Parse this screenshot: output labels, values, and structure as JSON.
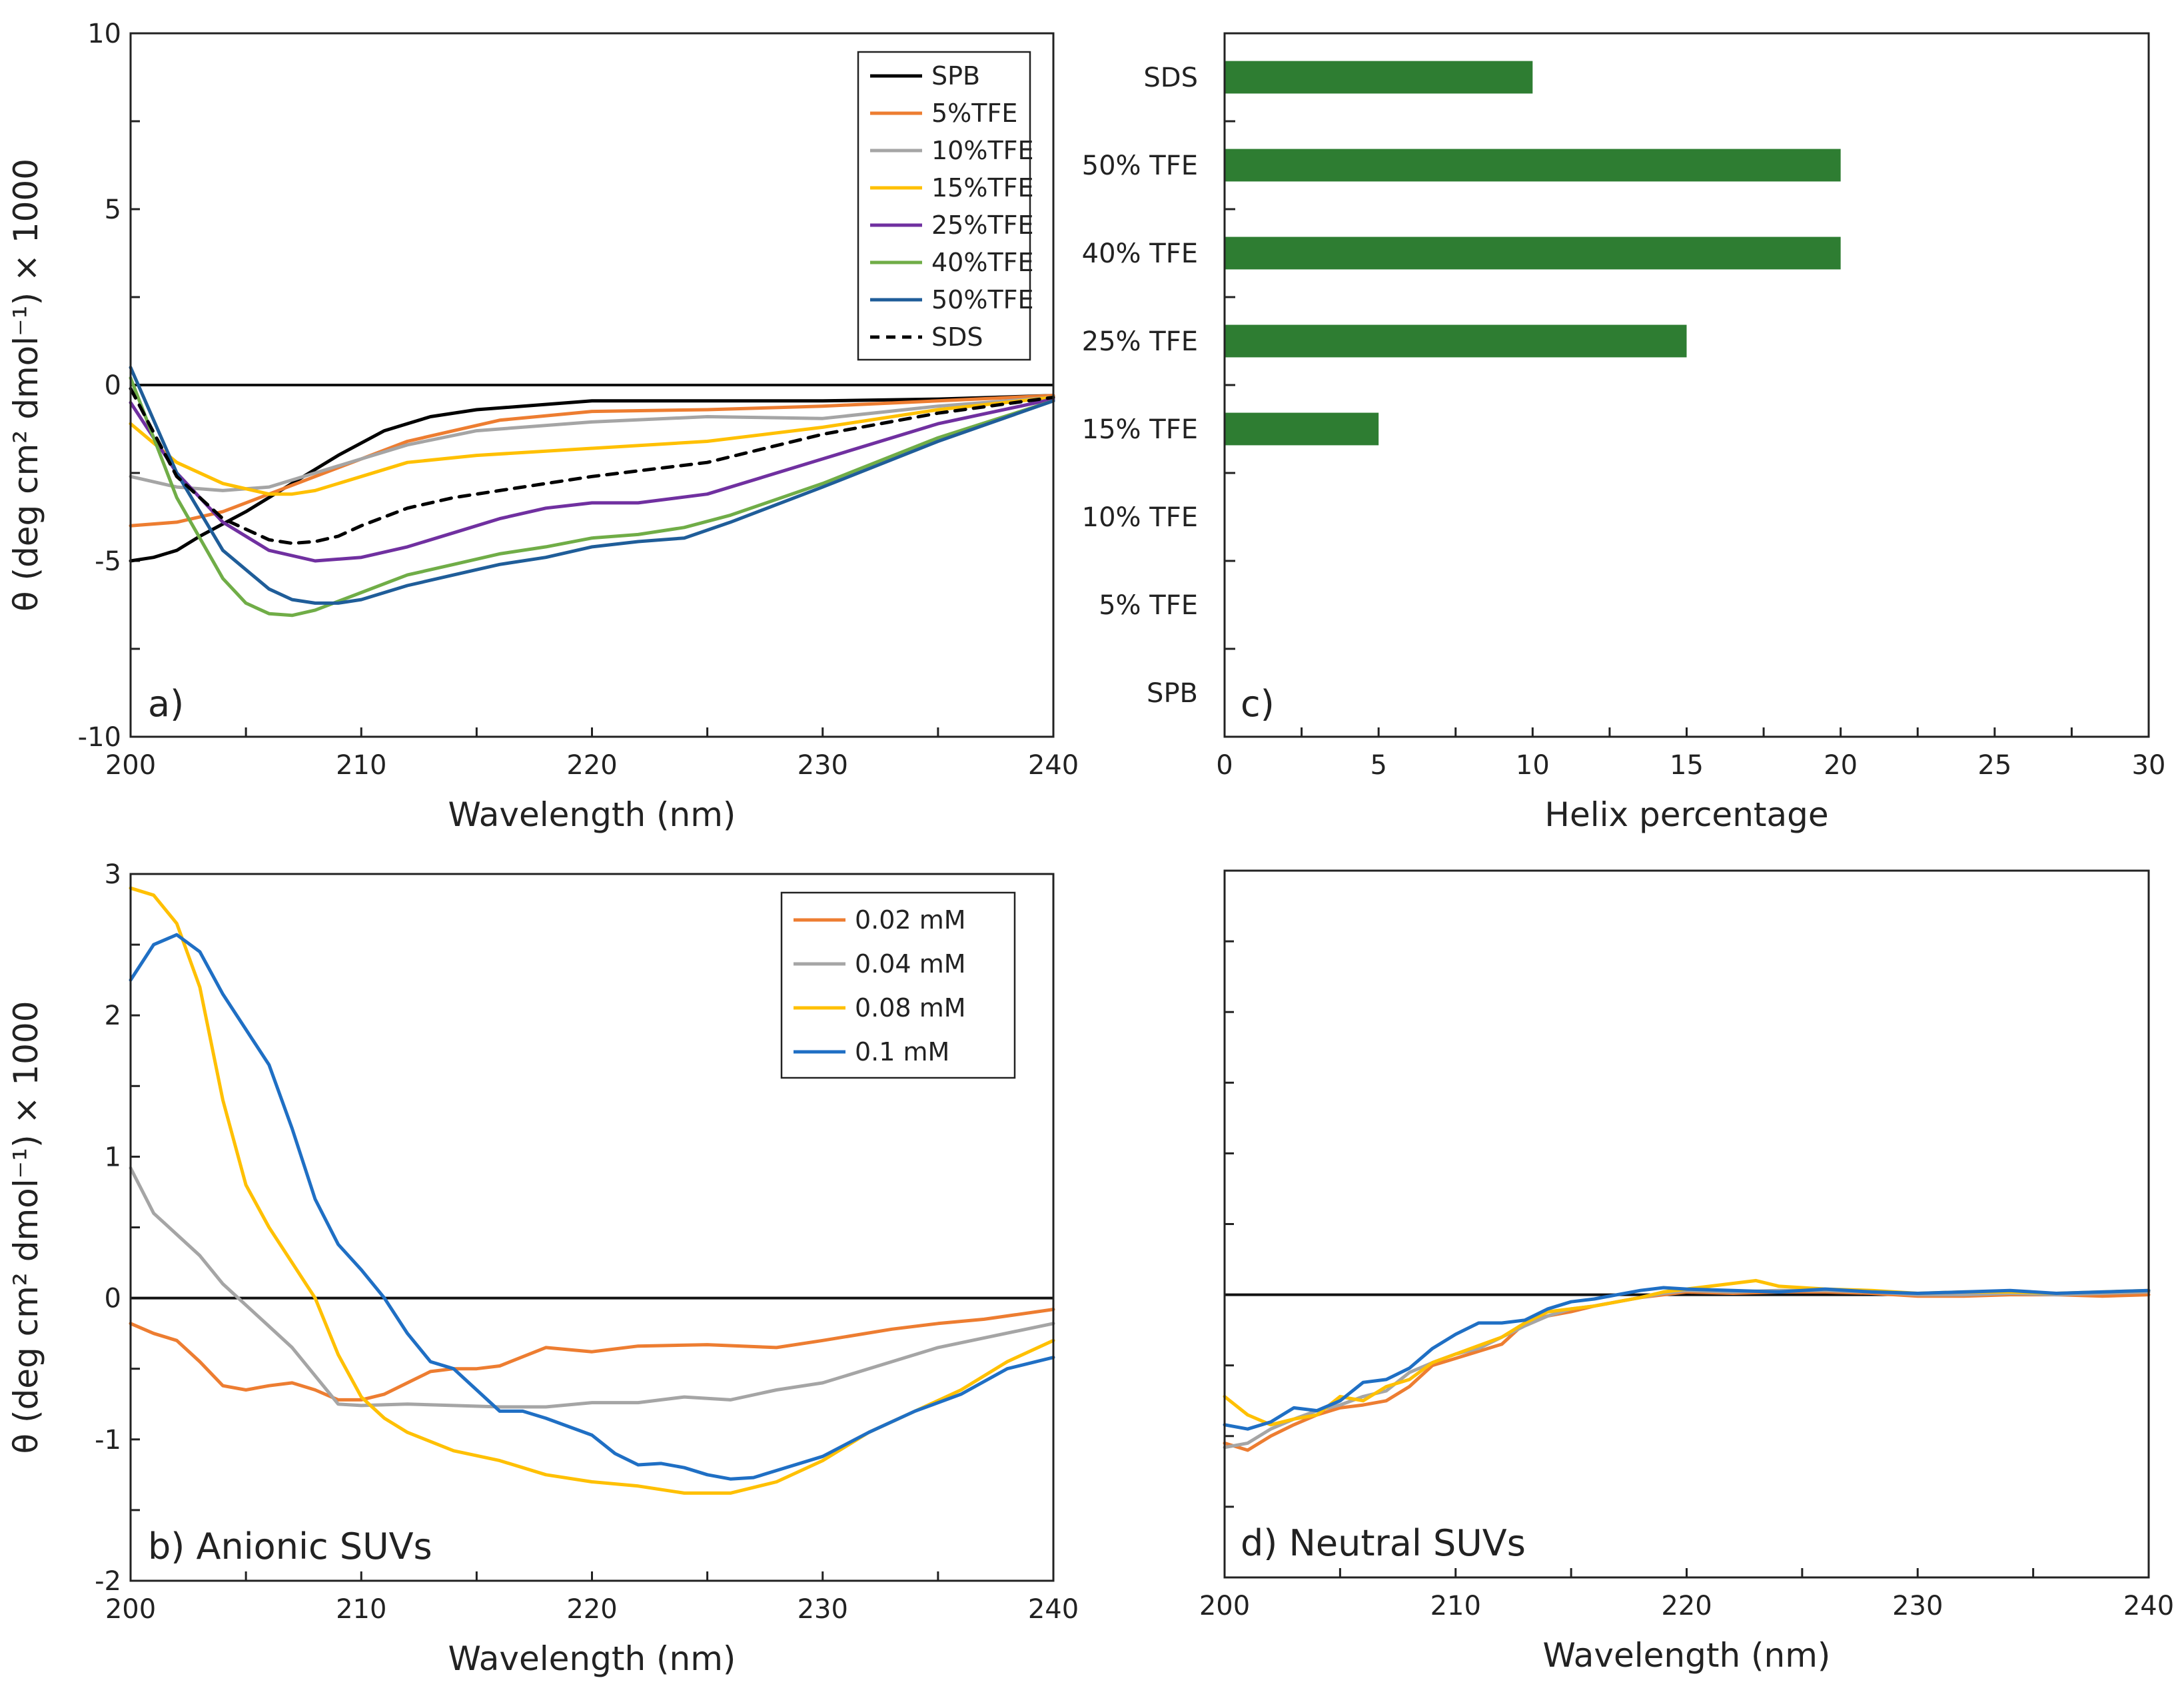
{
  "colors": {
    "SPB": "#000000",
    "TFE5": "#ED7D31",
    "TFE10": "#A5A5A5",
    "TFE15": "#FFC000",
    "TFE25": "#7030A0",
    "TFE40": "#70AD47",
    "TFE50": "#1F5D99",
    "SDS": "#000000",
    "bar": "#2E7D32",
    "mM002": "#ED7D31",
    "mM004": "#A5A5A5",
    "mM008": "#FFC000",
    "mM01": "#1F6FC4"
  },
  "chart_data": [
    {
      "id": "a",
      "type": "line",
      "panel_label": "a)",
      "xlabel": "Wavelength (nm)",
      "ylabel": "θ (deg cm² dmol⁻¹) × 1000",
      "xlim": [
        200,
        240
      ],
      "ylim": [
        -10,
        10
      ],
      "xticks": [
        200,
        210,
        220,
        230,
        240
      ],
      "yticks": [
        -10,
        -5,
        0,
        5,
        10
      ],
      "legend": "top-right",
      "series": [
        {
          "name": "SPB",
          "color": "#000000",
          "dash": false,
          "x": [
            200,
            201,
            202,
            203,
            205,
            207,
            209,
            211,
            213,
            215,
            220,
            225,
            230,
            235,
            240
          ],
          "y": [
            -5,
            -4.9,
            -4.7,
            -4.3,
            -3.6,
            -2.8,
            -2.0,
            -1.3,
            -0.9,
            -0.7,
            -0.45,
            -0.45,
            -0.45,
            -0.4,
            -0.3
          ]
        },
        {
          "name": "5%TFE",
          "color": "#ED7D31",
          "dash": false,
          "x": [
            200,
            202,
            204,
            206,
            208,
            210,
            212,
            214,
            216,
            220,
            225,
            230,
            235,
            240
          ],
          "y": [
            -4,
            -3.9,
            -3.6,
            -3.1,
            -2.6,
            -2.1,
            -1.6,
            -1.3,
            -1.0,
            -0.75,
            -0.7,
            -0.6,
            -0.45,
            -0.3
          ]
        },
        {
          "name": "10%TFE",
          "color": "#A5A5A5",
          "dash": false,
          "x": [
            200,
            202,
            204,
            206,
            208,
            210,
            212,
            215,
            220,
            225,
            230,
            235,
            240
          ],
          "y": [
            -2.6,
            -2.9,
            -3.0,
            -2.9,
            -2.5,
            -2.1,
            -1.7,
            -1.3,
            -1.05,
            -0.9,
            -0.95,
            -0.6,
            -0.35
          ]
        },
        {
          "name": "15%TFE",
          "color": "#FFC000",
          "dash": false,
          "x": [
            200,
            202,
            204,
            206,
            207,
            208,
            210,
            212,
            215,
            220,
            225,
            230,
            235,
            240
          ],
          "y": [
            -1.1,
            -2.2,
            -2.8,
            -3.1,
            -3.1,
            -3.0,
            -2.6,
            -2.2,
            -2.0,
            -1.8,
            -1.6,
            -1.2,
            -0.7,
            -0.35
          ]
        },
        {
          "name": "25%TFE",
          "color": "#7030A0",
          "dash": false,
          "x": [
            200,
            202,
            204,
            206,
            208,
            210,
            212,
            214,
            216,
            218,
            220,
            222,
            225,
            230,
            235,
            240
          ],
          "y": [
            -0.5,
            -2.5,
            -3.9,
            -4.7,
            -5.0,
            -4.9,
            -4.6,
            -4.2,
            -3.8,
            -3.5,
            -3.35,
            -3.35,
            -3.1,
            -2.1,
            -1.1,
            -0.4
          ]
        },
        {
          "name": "40%TFE",
          "color": "#70AD47",
          "dash": false,
          "x": [
            200,
            202,
            204,
            205,
            206,
            207,
            208,
            210,
            212,
            214,
            216,
            218,
            220,
            222,
            224,
            226,
            230,
            235,
            240
          ],
          "y": [
            0.2,
            -3.2,
            -5.5,
            -6.2,
            -6.5,
            -6.55,
            -6.4,
            -5.9,
            -5.4,
            -5.1,
            -4.8,
            -4.6,
            -4.35,
            -4.25,
            -4.05,
            -3.7,
            -2.8,
            -1.5,
            -0.45
          ]
        },
        {
          "name": "50%TFE",
          "color": "#1F5D99",
          "dash": false,
          "x": [
            200,
            202,
            204,
            206,
            207,
            208,
            209,
            210,
            212,
            214,
            216,
            218,
            220,
            222,
            224,
            226,
            230,
            235,
            240
          ],
          "y": [
            0.5,
            -2.5,
            -4.7,
            -5.8,
            -6.1,
            -6.2,
            -6.2,
            -6.1,
            -5.7,
            -5.4,
            -5.1,
            -4.9,
            -4.6,
            -4.45,
            -4.35,
            -3.9,
            -2.9,
            -1.6,
            -0.45
          ]
        },
        {
          "name": "SDS",
          "color": "#000000",
          "dash": true,
          "x": [
            200,
            202,
            204,
            206,
            207,
            208,
            209,
            210,
            212,
            214,
            216,
            220,
            225,
            230,
            235,
            240
          ],
          "y": [
            -0.1,
            -2.6,
            -3.8,
            -4.4,
            -4.5,
            -4.45,
            -4.3,
            -4.0,
            -3.5,
            -3.2,
            -3.0,
            -2.6,
            -2.2,
            -1.4,
            -0.8,
            -0.35
          ]
        }
      ]
    },
    {
      "id": "c",
      "type": "bar",
      "orientation": "horizontal",
      "panel_label": "c)",
      "xlabel": "Helix percentage",
      "xlim": [
        0,
        30
      ],
      "xticks": [
        0,
        5,
        10,
        15,
        20,
        25,
        30
      ],
      "categories": [
        "SDS",
        "50% TFE",
        "40% TFE",
        "25% TFE",
        "15% TFE",
        "10% TFE",
        "5% TFE",
        "SPB"
      ],
      "values": [
        10,
        20,
        20,
        15,
        5,
        0,
        0,
        0
      ],
      "color": "#2E7D32"
    },
    {
      "id": "b",
      "type": "line",
      "panel_label": "b)  Anionic SUVs",
      "xlabel": "Wavelength (nm)",
      "ylabel": "θ (deg cm² dmol⁻¹) × 1000",
      "xlim": [
        200,
        240
      ],
      "ylim": [
        -2,
        3
      ],
      "xticks": [
        200,
        210,
        220,
        230,
        240
      ],
      "yticks": [
        -2,
        -1,
        0,
        1,
        2,
        3
      ],
      "legend": "top-right",
      "series": [
        {
          "name": "0.02 mM",
          "color": "#ED7D31",
          "x": [
            200,
            201,
            202,
            203,
            204,
            205,
            206,
            207,
            208,
            209,
            210,
            211,
            212,
            213,
            214,
            215,
            216,
            218,
            220,
            222,
            225,
            228,
            230,
            233,
            235,
            237,
            240
          ],
          "y": [
            -0.18,
            -0.25,
            -0.3,
            -0.45,
            -0.62,
            -0.65,
            -0.62,
            -0.6,
            -0.65,
            -0.72,
            -0.72,
            -0.68,
            -0.6,
            -0.52,
            -0.5,
            -0.5,
            -0.48,
            -0.35,
            -0.38,
            -0.34,
            -0.33,
            -0.35,
            -0.3,
            -0.22,
            -0.18,
            -0.15,
            -0.08
          ]
        },
        {
          "name": "0.04 mM",
          "color": "#A5A5A5",
          "x": [
            200,
            201,
            202,
            203,
            204,
            205,
            206,
            207,
            208,
            209,
            210,
            212,
            214,
            216,
            218,
            220,
            222,
            224,
            226,
            228,
            230,
            233,
            235,
            240
          ],
          "y": [
            0.92,
            0.6,
            0.45,
            0.3,
            0.1,
            -0.05,
            -0.2,
            -0.35,
            -0.55,
            -0.75,
            -0.76,
            -0.75,
            -0.76,
            -0.77,
            -0.77,
            -0.74,
            -0.74,
            -0.7,
            -0.72,
            -0.65,
            -0.6,
            -0.45,
            -0.35,
            -0.18
          ]
        },
        {
          "name": "0.08 mM",
          "color": "#FFC000",
          "x": [
            200,
            201,
            202,
            203,
            204,
            205,
            206,
            207,
            208,
            209,
            210,
            211,
            212,
            214,
            216,
            218,
            220,
            222,
            224,
            226,
            228,
            230,
            232,
            234,
            236,
            238,
            240
          ],
          "y": [
            2.9,
            2.85,
            2.65,
            2.2,
            1.4,
            0.8,
            0.5,
            0.25,
            0.0,
            -0.4,
            -0.7,
            -0.85,
            -0.95,
            -1.08,
            -1.15,
            -1.25,
            -1.3,
            -1.33,
            -1.38,
            -1.38,
            -1.3,
            -1.15,
            -0.95,
            -0.8,
            -0.65,
            -0.45,
            -0.3
          ]
        },
        {
          "name": "0.1 mM",
          "color": "#1F6FC4",
          "x": [
            200,
            201,
            202,
            203,
            204,
            205,
            206,
            207,
            208,
            209,
            210,
            211,
            212,
            213,
            214,
            215,
            216,
            217,
            218,
            220,
            221,
            222,
            223,
            224,
            225,
            226,
            227,
            228,
            230,
            232,
            234,
            236,
            238,
            240
          ],
          "y": [
            2.25,
            2.5,
            2.57,
            2.45,
            2.15,
            1.9,
            1.65,
            1.2,
            0.7,
            0.38,
            0.2,
            0.0,
            -0.25,
            -0.45,
            -0.5,
            -0.65,
            -0.8,
            -0.8,
            -0.85,
            -0.97,
            -1.1,
            -1.18,
            -1.17,
            -1.2,
            -1.25,
            -1.28,
            -1.27,
            -1.22,
            -1.12,
            -0.95,
            -0.8,
            -0.68,
            -0.5,
            -0.42
          ]
        }
      ]
    },
    {
      "id": "d",
      "type": "line",
      "panel_label": "d)  Neutral SUVs",
      "xlabel": "Wavelength (nm)",
      "xlim": [
        200,
        240
      ],
      "ylim": [
        -2,
        3
      ],
      "xticks": [
        200,
        210,
        220,
        230,
        240
      ],
      "series": [
        {
          "name": "0.02 mM",
          "color": "#ED7D31",
          "x": [
            200,
            201,
            202,
            203,
            204,
            205,
            206,
            207,
            208,
            209,
            210,
            211,
            212,
            213,
            214,
            215,
            216,
            217,
            218,
            219,
            220,
            222,
            224,
            226,
            228,
            230,
            232,
            234,
            236,
            238,
            240
          ],
          "y": [
            -1.05,
            -1.1,
            -1.0,
            -0.92,
            -0.85,
            -0.8,
            -0.78,
            -0.75,
            -0.65,
            -0.5,
            -0.45,
            -0.4,
            -0.35,
            -0.2,
            -0.15,
            -0.12,
            -0.08,
            -0.05,
            -0.02,
            0.0,
            0.02,
            0.01,
            0.02,
            0.02,
            0.01,
            -0.01,
            -0.01,
            0.0,
            0.0,
            -0.01,
            0.0
          ]
        },
        {
          "name": "0.04 mM",
          "color": "#A5A5A5",
          "x": [
            200,
            201,
            202,
            203,
            204,
            205,
            206,
            207,
            208,
            209,
            210,
            211,
            212,
            213,
            214,
            215,
            216,
            217,
            218,
            219,
            220,
            222,
            224,
            226,
            228,
            230,
            232,
            234,
            236,
            238,
            240
          ],
          "y": [
            -1.08,
            -1.05,
            -0.95,
            -0.88,
            -0.82,
            -0.78,
            -0.72,
            -0.68,
            -0.55,
            -0.48,
            -0.42,
            -0.38,
            -0.3,
            -0.22,
            -0.15,
            -0.1,
            -0.08,
            -0.05,
            -0.02,
            0.01,
            0.03,
            0.02,
            0.03,
            0.03,
            0.02,
            0.0,
            0.0,
            0.01,
            0.0,
            0.01,
            0.02
          ]
        },
        {
          "name": "0.08 mM",
          "color": "#FFC000",
          "x": [
            200,
            201,
            202,
            203,
            204,
            205,
            206,
            207,
            208,
            209,
            210,
            211,
            212,
            213,
            214,
            215,
            216,
            217,
            218,
            219,
            220,
            221,
            222,
            223,
            224,
            226,
            228,
            230,
            232,
            234,
            236,
            238,
            240
          ],
          "y": [
            -0.72,
            -0.85,
            -0.92,
            -0.88,
            -0.85,
            -0.72,
            -0.75,
            -0.65,
            -0.6,
            -0.48,
            -0.42,
            -0.36,
            -0.3,
            -0.2,
            -0.12,
            -0.1,
            -0.08,
            -0.05,
            -0.02,
            0.02,
            0.04,
            0.06,
            0.08,
            0.1,
            0.06,
            0.04,
            0.03,
            0.01,
            0.02,
            0.02,
            0.01,
            0.02,
            0.03
          ]
        },
        {
          "name": "0.1 mM",
          "color": "#1F6FC4",
          "x": [
            200,
            201,
            202,
            203,
            204,
            205,
            206,
            207,
            208,
            209,
            210,
            211,
            212,
            213,
            214,
            215,
            216,
            217,
            218,
            219,
            220,
            222,
            224,
            226,
            228,
            230,
            232,
            234,
            236,
            238,
            240
          ],
          "y": [
            -0.92,
            -0.95,
            -0.9,
            -0.8,
            -0.82,
            -0.75,
            -0.62,
            -0.6,
            -0.52,
            -0.38,
            -0.28,
            -0.2,
            -0.2,
            -0.18,
            -0.1,
            -0.05,
            -0.03,
            0.0,
            0.03,
            0.05,
            0.04,
            0.03,
            0.02,
            0.04,
            0.02,
            0.01,
            0.02,
            0.03,
            0.01,
            0.02,
            0.03
          ]
        }
      ]
    }
  ]
}
